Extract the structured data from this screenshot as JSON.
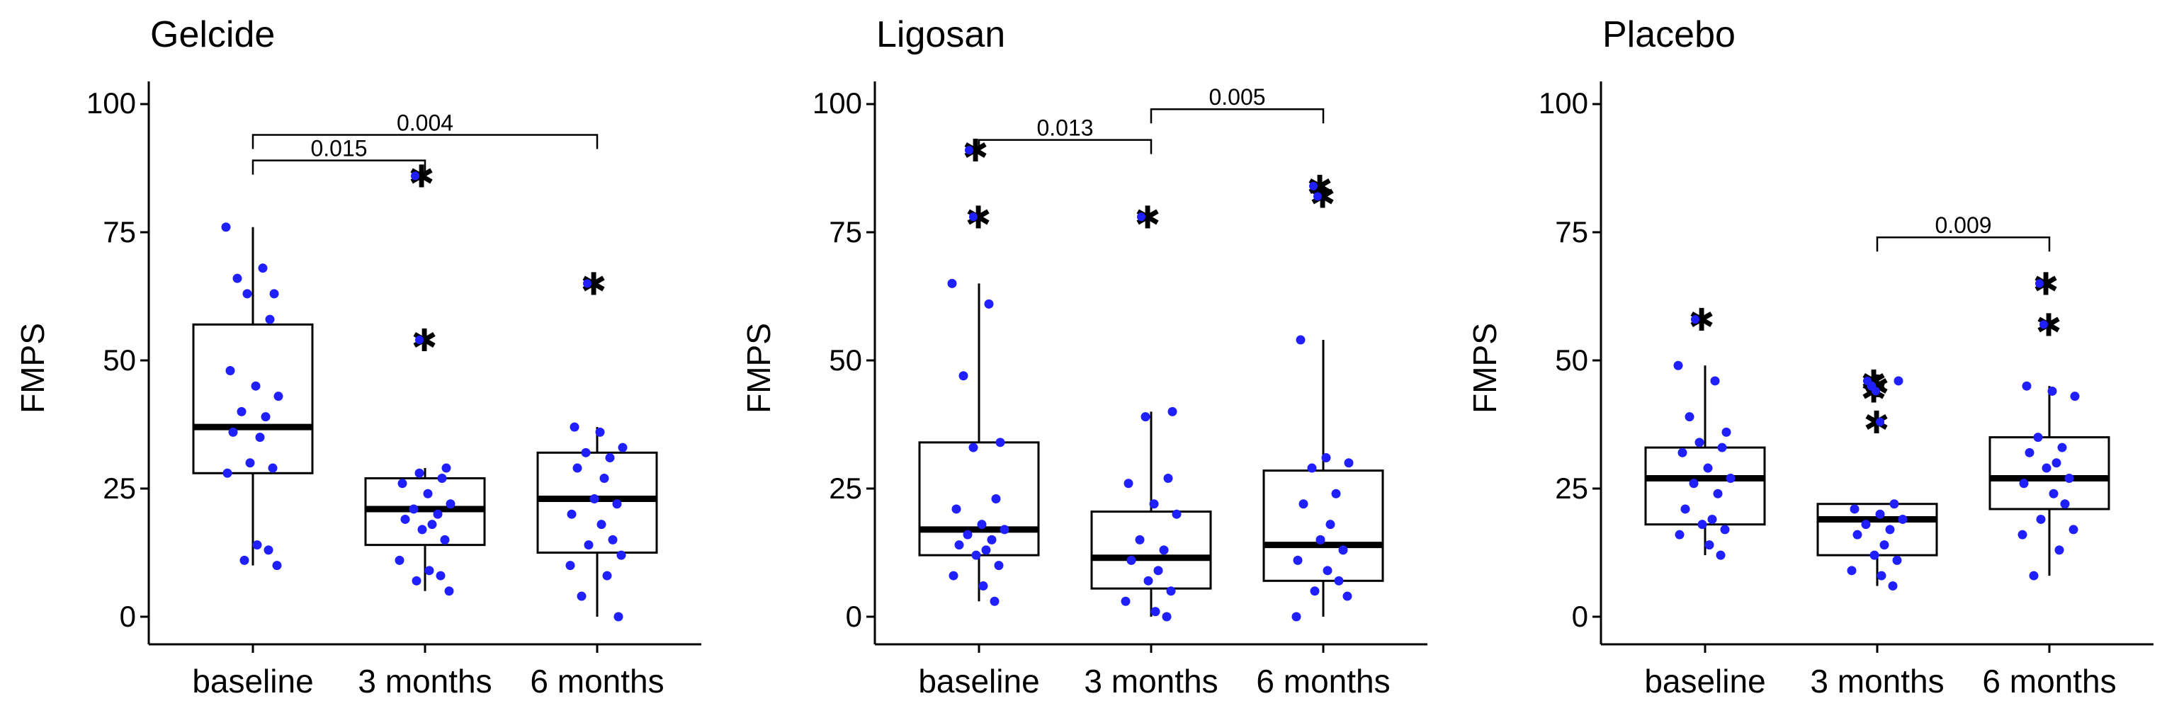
{
  "figure": {
    "background": "#ffffff",
    "point_color": "#1f1fff"
  },
  "chart_data": [
    {
      "type": "box",
      "title": "Gelcide",
      "ylabel": "FMPS",
      "xlabel": "",
      "ylim": [
        0,
        100
      ],
      "yticks": [
        "0",
        "25",
        "50",
        "75",
        "100"
      ],
      "categories": [
        "baseline",
        "3 months",
        "6 months"
      ],
      "boxes": [
        {
          "q1": 28,
          "median": 37,
          "q3": 57,
          "whisker_low": 10,
          "whisker_high": 76
        },
        {
          "q1": 14,
          "median": 21,
          "q3": 27,
          "whisker_low": 5,
          "whisker_high": 29
        },
        {
          "q1": 12.5,
          "median": 23,
          "q3": 32,
          "whisker_low": 0,
          "whisker_high": 37
        }
      ],
      "points": [
        [
          76,
          68,
          66,
          63,
          63,
          58,
          48,
          45,
          43,
          40,
          39,
          36,
          35,
          30,
          29,
          28,
          14,
          13,
          11,
          10
        ],
        [
          29,
          28,
          27,
          26,
          24,
          22,
          21,
          20,
          19,
          18,
          17,
          15,
          11,
          9,
          8,
          7,
          5
        ],
        [
          37,
          36,
          33,
          32,
          31,
          29,
          27,
          23,
          22,
          20,
          18,
          15,
          14,
          12,
          10,
          8,
          4,
          0
        ]
      ],
      "outliers": [
        [],
        [
          86,
          54
        ],
        [
          65
        ]
      ],
      "comparisons": [
        {
          "from": "baseline",
          "to": "3 months",
          "label": "0.015",
          "y": 89
        },
        {
          "from": "baseline",
          "to": "6 months",
          "label": "0.004",
          "y": 94
        }
      ]
    },
    {
      "type": "box",
      "title": "Ligosan",
      "ylabel": "FMPS",
      "xlabel": "",
      "ylim": [
        0,
        100
      ],
      "yticks": [
        "0",
        "25",
        "50",
        "75",
        "100"
      ],
      "categories": [
        "baseline",
        "3 months",
        "6 months"
      ],
      "boxes": [
        {
          "q1": 12,
          "median": 17,
          "q3": 34,
          "whisker_low": 3,
          "whisker_high": 65
        },
        {
          "q1": 5.5,
          "median": 11.5,
          "q3": 20.5,
          "whisker_low": 0,
          "whisker_high": 40
        },
        {
          "q1": 7,
          "median": 14,
          "q3": 28.5,
          "whisker_low": 0,
          "whisker_high": 54
        }
      ],
      "points": [
        [
          65,
          61,
          47,
          34,
          33,
          23,
          21,
          18,
          17,
          16,
          15,
          14,
          13,
          12,
          10,
          8,
          6,
          3
        ],
        [
          40,
          39,
          27,
          26,
          22,
          20,
          15,
          13,
          11,
          9,
          7,
          5,
          3,
          1,
          0
        ],
        [
          54,
          31,
          30,
          29,
          24,
          22,
          18,
          15,
          13,
          11,
          9,
          7,
          5,
          4,
          0
        ]
      ],
      "outliers": [
        [
          91,
          78
        ],
        [
          78
        ],
        [
          84,
          82
        ]
      ],
      "comparisons": [
        {
          "from": "baseline",
          "to": "3 months",
          "label": "0.013",
          "y": 93
        },
        {
          "from": "3 months",
          "to": "6 months",
          "label": "0.005",
          "y": 99
        }
      ]
    },
    {
      "type": "box",
      "title": "Placebo",
      "ylabel": "FMPS",
      "xlabel": "",
      "ylim": [
        0,
        100
      ],
      "yticks": [
        "0",
        "25",
        "50",
        "75",
        "100"
      ],
      "categories": [
        "baseline",
        "3 months",
        "6 months"
      ],
      "boxes": [
        {
          "q1": 18,
          "median": 27,
          "q3": 33,
          "whisker_low": 12,
          "whisker_high": 49
        },
        {
          "q1": 12,
          "median": 19,
          "q3": 22,
          "whisker_low": 6,
          "whisker_high": 22
        },
        {
          "q1": 21,
          "median": 27,
          "q3": 35,
          "whisker_low": 8,
          "whisker_high": 45
        }
      ],
      "points": [
        [
          49,
          46,
          39,
          36,
          34,
          33,
          32,
          29,
          27,
          26,
          24,
          21,
          19,
          18,
          17,
          16,
          14,
          12
        ],
        [
          46,
          45,
          22,
          21,
          20,
          19,
          18,
          17,
          16,
          14,
          12,
          11,
          9,
          8,
          6
        ],
        [
          45,
          44,
          43,
          35,
          33,
          32,
          30,
          29,
          27,
          26,
          24,
          22,
          19,
          17,
          16,
          13,
          8
        ]
      ],
      "outliers": [
        [
          58
        ],
        [
          46,
          45,
          44,
          38
        ],
        [
          65,
          57
        ]
      ],
      "comparisons": [
        {
          "from": "3 months",
          "to": "6 months",
          "label": "0.009",
          "y": 74
        }
      ]
    }
  ]
}
